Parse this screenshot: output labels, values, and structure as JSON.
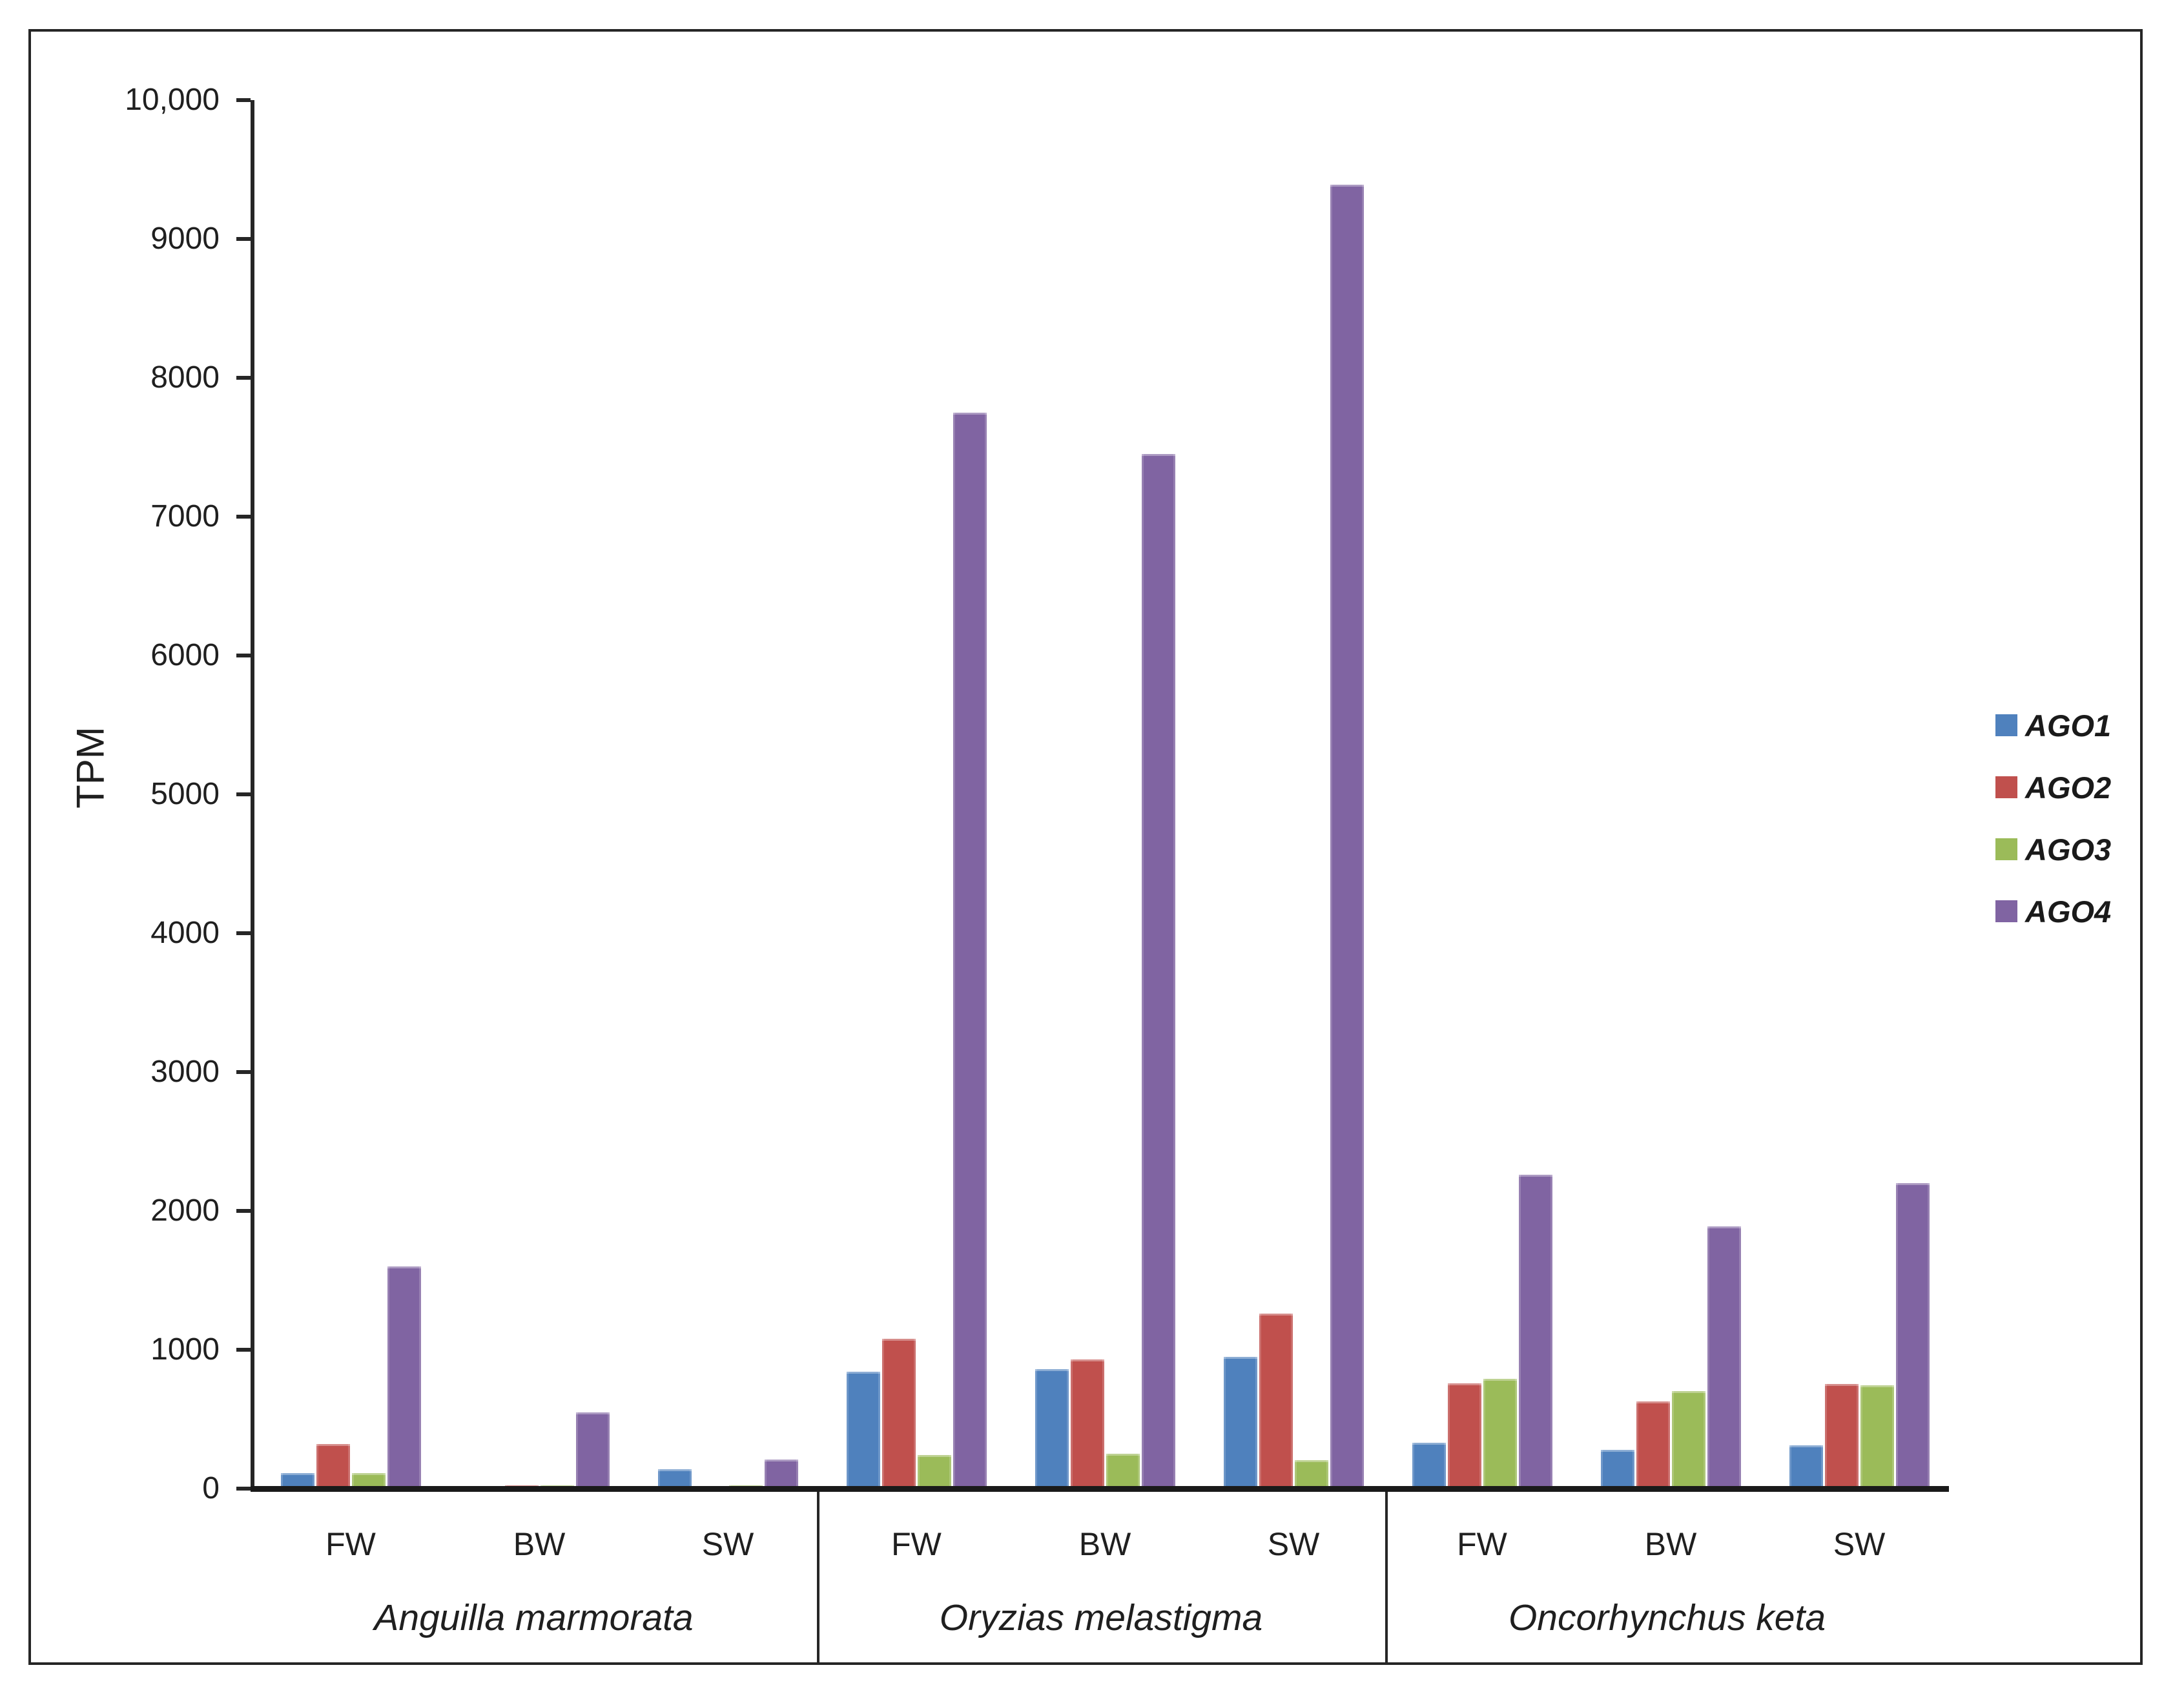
{
  "figure": {
    "title": "",
    "border_color": "#262626",
    "background": "#ffffff"
  },
  "chart_data": {
    "type": "bar",
    "title": "",
    "xlabel": "",
    "ylabel": "TPM",
    "ylim": [
      0,
      10000
    ],
    "grid": false,
    "legend_position": "right",
    "yticks": [
      {
        "value": 0,
        "label": "0"
      },
      {
        "value": 1000,
        "label": "1000"
      },
      {
        "value": 2000,
        "label": "2000"
      },
      {
        "value": 3000,
        "label": "3000"
      },
      {
        "value": 4000,
        "label": "4000"
      },
      {
        "value": 5000,
        "label": "5000"
      },
      {
        "value": 6000,
        "label": "6000"
      },
      {
        "value": 7000,
        "label": "7000"
      },
      {
        "value": 8000,
        "label": "8000"
      },
      {
        "value": 9000,
        "label": "9000"
      },
      {
        "value": 10000,
        "label": "10,000"
      }
    ],
    "series": [
      {
        "name": "AGO1",
        "color": "#4F81BD"
      },
      {
        "name": "AGO2",
        "color": "#C0504D"
      },
      {
        "name": "AGO3",
        "color": "#9BBB59"
      },
      {
        "name": "AGO4",
        "color": "#8064A2"
      }
    ],
    "groups": [
      {
        "species": "Anguilla marmorata",
        "clusters": [
          {
            "label": "FW",
            "values": [
              110,
              320,
              110,
              1600
            ]
          },
          {
            "label": "BW",
            "values": [
              10,
              25,
              25,
              550
            ]
          },
          {
            "label": "SW",
            "values": [
              140,
              8,
              25,
              210
            ]
          }
        ]
      },
      {
        "species": "Oryzias melastigma",
        "clusters": [
          {
            "label": "FW",
            "values": [
              840,
              1080,
              240,
              7750
            ]
          },
          {
            "label": "BW",
            "values": [
              860,
              930,
              250,
              7450
            ]
          },
          {
            "label": "SW",
            "values": [
              950,
              1260,
              205,
              9390
            ]
          }
        ]
      },
      {
        "species": "Oncorhynchus keta",
        "clusters": [
          {
            "label": "FW",
            "values": [
              330,
              760,
              790,
              2260
            ]
          },
          {
            "label": "BW",
            "values": [
              280,
              630,
              700,
              1890
            ]
          },
          {
            "label": "SW",
            "values": [
              310,
              755,
              745,
              2200
            ]
          }
        ]
      }
    ]
  }
}
